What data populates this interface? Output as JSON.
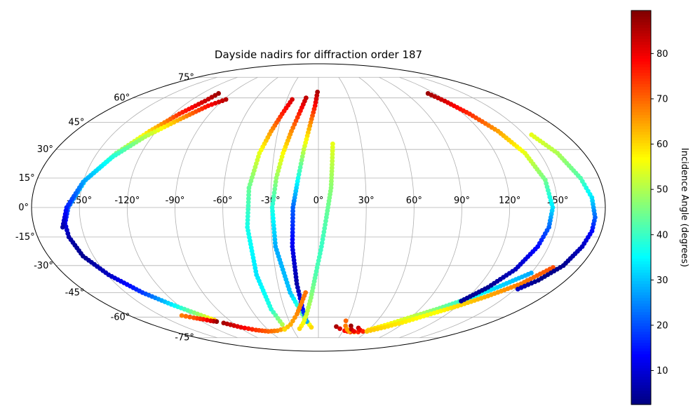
{
  "chart_data": {
    "type": "scatter",
    "projection": "mollweide",
    "title": "Dayside nadirs for diffraction order 187",
    "colorbar": {
      "label": "Incidence Angle (degrees)",
      "colormap": "jet",
      "range": [
        2.5,
        89.5
      ],
      "ticks": [
        "10",
        "20",
        "30",
        "40",
        "50",
        "60",
        "70",
        "80"
      ]
    },
    "lon_tick_labels": [
      {
        "lon": -150,
        "text": "-150°"
      },
      {
        "lon": -120,
        "text": "-120°"
      },
      {
        "lon": -90,
        "text": "-90°"
      },
      {
        "lon": -60,
        "text": "-60°"
      },
      {
        "lon": -30,
        "text": "-30°"
      },
      {
        "lon": 0,
        "text": "0°"
      },
      {
        "lon": 30,
        "text": "30°"
      },
      {
        "lon": 60,
        "text": "60°"
      },
      {
        "lon": 90,
        "text": "90°"
      },
      {
        "lon": 120,
        "text": "120°"
      },
      {
        "lon": 150,
        "text": "150°"
      }
    ],
    "lat_tick_labels": [
      {
        "lat": 75,
        "text": "75°"
      },
      {
        "lat": 60,
        "text": "60°"
      },
      {
        "lat": 45,
        "text": "45°"
      },
      {
        "lat": 30,
        "text": "30°"
      },
      {
        "lat": 15,
        "text": "15°"
      },
      {
        "lat": 0,
        "text": "0°"
      },
      {
        "lat": -15,
        "text": "-15°"
      },
      {
        "lat": -30,
        "text": "-30°"
      },
      {
        "lat": -45,
        "text": "-45°"
      },
      {
        "lat": -60,
        "text": "-60°"
      },
      {
        "lat": -75,
        "text": "-75°"
      }
    ],
    "grid": true,
    "tracks": [
      {
        "lon": [
          -103,
          -106,
          -115,
          -125,
          -137,
          -149,
          -157,
          -160,
          -160,
          -157,
          -149,
          -137,
          -125,
          -113,
          -105
        ],
        "lat": [
          63,
          58,
          50,
          40,
          28,
          14,
          0,
          -8,
          -15,
          -25,
          -35,
          -45,
          -52,
          -58,
          -62
        ],
        "inc": [
          87,
          83,
          75,
          60,
          45,
          33,
          22,
          12,
          6,
          4,
          8,
          18,
          33,
          48,
          60
        ]
      },
      {
        "lon": [
          -88,
          -98,
          -110,
          -125,
          -138,
          -150,
          -158,
          -162
        ],
        "lat": [
          59,
          55,
          47,
          37,
          26,
          13,
          0,
          -10
        ],
        "inc": [
          85,
          78,
          65,
          50,
          38,
          27,
          16,
          6
        ]
      },
      {
        "lon": [
          -105,
          -110,
          -115,
          -122,
          -130
        ],
        "lat": [
          -63,
          -62.5,
          -61.5,
          -60.5,
          -59
        ],
        "inc": [
          88,
          82,
          77,
          72,
          68
        ]
      },
      {
        "lon": [
          -40,
          -50,
          -62,
          -75,
          -88,
          -100
        ],
        "lat": [
          -68,
          -69.5,
          -70,
          -69,
          -67,
          -64
        ],
        "inc": [
          64,
          67,
          70,
          74,
          80,
          86
        ]
      },
      {
        "lon": [
          -25,
          -30,
          -35,
          -40,
          -44,
          -45,
          -44,
          -42,
          -39
        ],
        "lat": [
          59,
          50,
          40,
          28,
          10,
          -10,
          -35,
          -55,
          -65
        ],
        "inc": [
          82,
          76,
          66,
          55,
          44,
          37,
          33,
          38,
          50
        ]
      },
      {
        "lon": [
          -12,
          -16,
          -20,
          -24,
          -27,
          -29,
          -28,
          -22,
          -14,
          -8
        ],
        "lat": [
          60,
          50,
          40,
          28,
          15,
          0,
          -20,
          -45,
          -60,
          -67
        ],
        "inc": [
          84,
          76,
          67,
          57,
          48,
          38,
          28,
          30,
          45,
          60
        ]
      },
      {
        "lon": [
          -1,
          -3,
          -6,
          -10,
          -13,
          -16,
          -17,
          -16,
          -14,
          -12
        ],
        "lat": [
          64,
          55,
          45,
          30,
          15,
          0,
          -20,
          -40,
          -55,
          -63
        ],
        "inc": [
          86,
          78,
          67,
          52,
          37,
          22,
          12,
          6,
          14,
          28
        ]
      },
      {
        "lon": [
          -10,
          -20,
          -30,
          -40
        ],
        "lat": [
          -45,
          -58,
          -65,
          -68.5
        ],
        "inc": [
          69,
          67,
          64,
          60
        ]
      },
      {
        "lon": [
          10,
          9,
          8,
          5,
          2,
          -2,
          -6,
          -11,
          -16,
          -22
        ],
        "lat": [
          33,
          22,
          10,
          -5,
          -20,
          -35,
          -48,
          -58,
          -64,
          -68
        ],
        "inc": [
          55,
          51,
          47,
          43,
          40,
          42,
          47,
          52,
          56,
          60
        ]
      },
      {
        "lon": [
          20,
          25,
          32,
          40
        ],
        "lat": [
          -66.5,
          -68,
          -69.5,
          -70.5
        ],
        "inc": [
          86,
          82,
          78,
          75
        ]
      },
      {
        "lon": [
          28,
          30,
          34,
          38,
          45
        ],
        "lat": [
          -62.5,
          -66,
          -68.5,
          -70,
          -70.5
        ],
        "inc": [
          70,
          68,
          65,
          64,
          63
        ]
      },
      {
        "lon": [
          36,
          39,
          44,
          50
        ],
        "lat": [
          -66,
          -68.5,
          -70,
          -70.5
        ],
        "inc": [
          87,
          84,
          80,
          76
        ]
      },
      {
        "lon": [
          46,
          50,
          55
        ],
        "lat": [
          -67.5,
          -69,
          -70
        ],
        "inc": [
          84,
          80,
          76
        ]
      },
      {
        "lon": [
          60,
          75,
          90,
          105,
          120,
          135,
          150
        ],
        "lat": [
          -69,
          -65,
          -60,
          -55,
          -49,
          -42,
          -34
        ],
        "inc": [
          60,
          57,
          52,
          46,
          38,
          32,
          28
        ]
      },
      {
        "lon": [
          60,
          75,
          90,
          105,
          120,
          135,
          150,
          162
        ],
        "lat": [
          -70,
          -67,
          -63,
          -58,
          -53,
          -47,
          -40,
          -31
        ],
        "inc": [
          62,
          60,
          58,
          56,
          60,
          64,
          68,
          72
        ]
      },
      {
        "lon": [
          113,
          118,
          125,
          133,
          140,
          145,
          147,
          146,
          143,
          137,
          128,
          118
        ],
        "lat": [
          63,
          58,
          50,
          40,
          28,
          14,
          0,
          -10,
          -20,
          -32,
          -42,
          -50
        ],
        "inc": [
          87,
          82,
          75,
          65,
          55,
          45,
          33,
          22,
          14,
          8,
          4,
          5
        ]
      },
      {
        "lon": [
          155,
          162,
          168,
          172,
          174,
          174,
          172,
          168,
          160,
          152
        ],
        "lat": [
          38,
          28,
          15,
          5,
          -5,
          -12,
          -20,
          -30,
          -38,
          -43
        ],
        "inc": [
          55,
          50,
          42,
          33,
          22,
          14,
          8,
          4,
          3,
          8
        ]
      }
    ]
  }
}
